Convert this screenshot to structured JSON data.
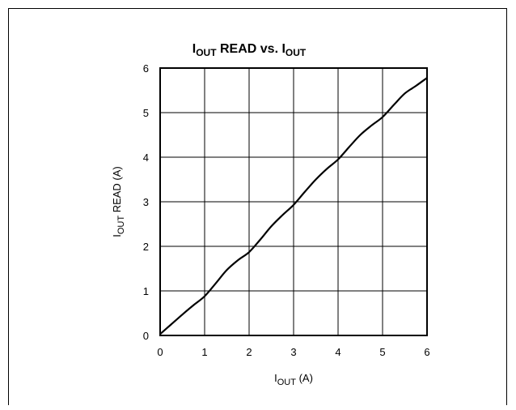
{
  "chart_data": {
    "type": "line",
    "title": {
      "main": "I",
      "sub1": "OUT",
      "mid": " READ vs. I",
      "sub2": "OUT"
    },
    "xlabel": {
      "main": "I",
      "sub": "OUT",
      "rest": " (A)"
    },
    "ylabel": {
      "main": "I",
      "sub": "OUT",
      "rest": " READ (A)"
    },
    "xlim": [
      0,
      6
    ],
    "ylim": [
      0,
      6
    ],
    "x_ticks": [
      "0",
      "1",
      "2",
      "3",
      "4",
      "5",
      "6"
    ],
    "y_ticks": [
      "0",
      "1",
      "2",
      "3",
      "4",
      "5",
      "6"
    ],
    "grid": true,
    "series": [
      {
        "x": [
          0,
          0.25,
          0.5,
          0.75,
          1.0,
          1.25,
          1.5,
          1.75,
          2.0,
          2.25,
          2.5,
          2.75,
          3.0,
          3.25,
          3.5,
          3.75,
          4.0,
          4.25,
          4.5,
          4.75,
          5.0,
          5.25,
          5.5,
          5.75,
          6.0
        ],
        "y": [
          0.03,
          0.25,
          0.47,
          0.68,
          0.88,
          1.17,
          1.47,
          1.69,
          1.87,
          2.15,
          2.45,
          2.7,
          2.93,
          3.22,
          3.5,
          3.74,
          3.95,
          4.23,
          4.5,
          4.71,
          4.9,
          5.17,
          5.43,
          5.6,
          5.78
        ]
      }
    ],
    "line_color": "#000000"
  }
}
